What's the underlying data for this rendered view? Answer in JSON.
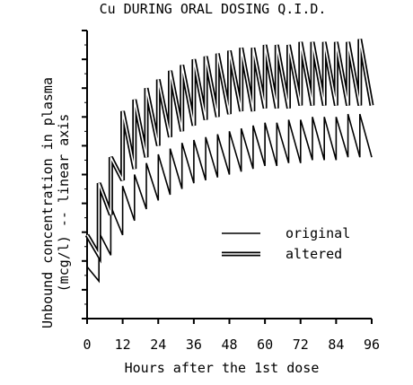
{
  "chart_data": {
    "type": "line",
    "title": "Cu DURING ORAL DOSING Q.I.D.",
    "xlabel": "Hours after the 1st dose",
    "ylabel_line1": "Unbound concentration in plasma",
    "ylabel_line2": "(mcg/l)  --  linear axis",
    "xlim": [
      0,
      96
    ],
    "x_ticks": [
      0,
      12,
      24,
      36,
      48,
      60,
      72,
      84,
      96
    ],
    "x_tick_labels": [
      "0",
      "12",
      "24",
      "36",
      "48",
      "60",
      "72",
      "84",
      "96"
    ],
    "ylim": [
      0,
      10
    ],
    "y_ticks_count": 11,
    "y_tick_labels_shown": false,
    "dose_interval_h": 4,
    "legend_position": "lower-right",
    "series": [
      {
        "name": "original",
        "style": "single-line",
        "x": [
          0,
          4,
          4,
          8,
          8,
          12,
          12,
          16,
          16,
          20,
          20,
          24,
          24,
          28,
          28,
          32,
          32,
          36,
          36,
          40,
          40,
          44,
          44,
          48,
          48,
          52,
          52,
          56,
          56,
          60,
          60,
          64,
          64,
          68,
          68,
          72,
          72,
          76,
          76,
          80,
          80,
          84,
          84,
          88,
          88,
          92,
          92,
          96
        ],
        "y": [
          1.8,
          1.3,
          3.0,
          2.2,
          3.9,
          2.9,
          4.6,
          3.4,
          5.0,
          3.8,
          5.4,
          4.1,
          5.7,
          4.3,
          5.9,
          4.5,
          6.1,
          4.7,
          6.2,
          4.8,
          6.3,
          4.9,
          6.4,
          5.0,
          6.5,
          5.1,
          6.6,
          5.2,
          6.7,
          5.3,
          6.8,
          5.3,
          6.8,
          5.4,
          6.9,
          5.4,
          6.9,
          5.5,
          7.0,
          5.5,
          7.0,
          5.5,
          7.0,
          5.6,
          7.1,
          5.6,
          7.1,
          5.6
        ]
      },
      {
        "name": "altered",
        "style": "double-line",
        "x": [
          0,
          4,
          4,
          8,
          8,
          12,
          12,
          16,
          16,
          20,
          20,
          24,
          24,
          28,
          28,
          32,
          32,
          36,
          36,
          40,
          40,
          44,
          44,
          48,
          48,
          52,
          52,
          56,
          56,
          60,
          60,
          64,
          64,
          68,
          68,
          72,
          72,
          76,
          76,
          80,
          80,
          84,
          84,
          88,
          88,
          92,
          92,
          96
        ],
        "y": [
          2.9,
          2.2,
          4.7,
          3.6,
          5.6,
          4.8,
          7.2,
          5.2,
          7.6,
          5.6,
          8.0,
          6.0,
          8.3,
          6.3,
          8.6,
          6.5,
          8.8,
          6.7,
          9.0,
          6.9,
          9.1,
          7.0,
          9.2,
          7.1,
          9.3,
          7.2,
          9.4,
          7.2,
          9.4,
          7.3,
          9.5,
          7.3,
          9.5,
          7.3,
          9.5,
          7.4,
          9.6,
          7.4,
          9.6,
          7.4,
          9.6,
          7.4,
          9.6,
          7.4,
          9.6,
          7.4,
          9.7,
          7.4
        ]
      }
    ]
  }
}
